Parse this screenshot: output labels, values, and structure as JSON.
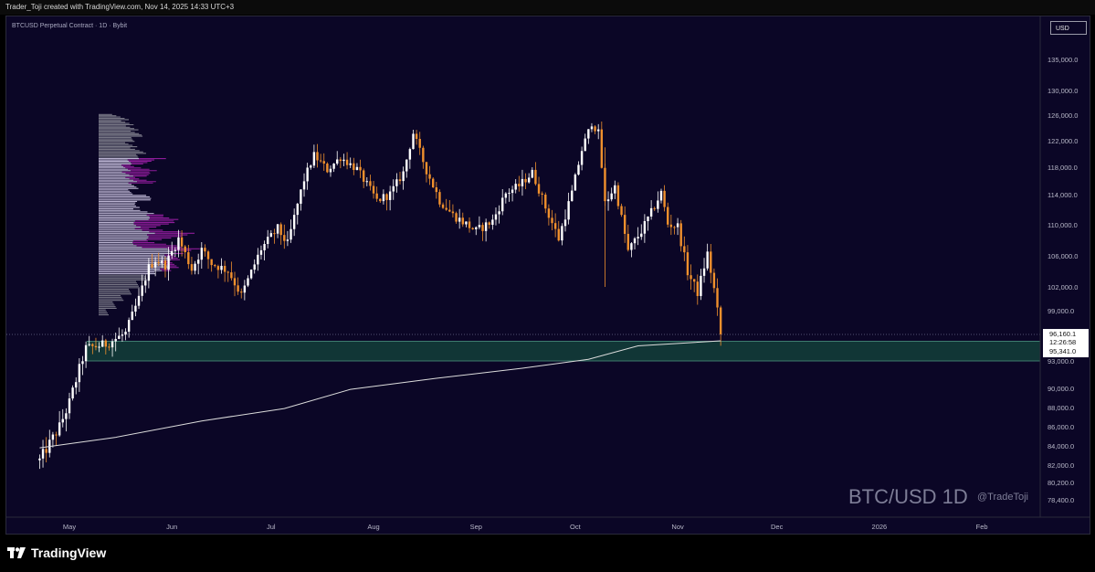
{
  "header": {
    "created_by": "Trader_Toji created with TradingView.com, Nov 14, 2025 14:33 UTC+3"
  },
  "chart_info": {
    "symbol": "BTCUSD Perpetual Contract · 1D · Bybit",
    "currency": "USD",
    "watermark": "BTC/USD 1D",
    "handle": "@TradeToji"
  },
  "footer": {
    "brand": "TradingView"
  },
  "colors": {
    "background": "#0b0626",
    "up_candle": "#ffffff",
    "down_candle": "#f0902d",
    "volume_profile_value_area": "#d8d0ee",
    "volume_profile_outside": "#8a8a96",
    "volume_profile_delta": "#9b1fa6",
    "support_zone": "#13403a",
    "moving_average": "#dcdcdc"
  },
  "chart_data": {
    "type": "candlestick",
    "title": "BTCUSD Perpetual Contract · 1D · Bybit",
    "y_axis_label": "USD",
    "y_ticks": [
      "135,000.0",
      "130,000.0",
      "126,000.0",
      "122,000.0",
      "118,000.0",
      "114,000.0",
      "110,000.0",
      "106,000.0",
      "102,000.0",
      "99,000.0",
      "93,000.0",
      "90,000.0",
      "88,000.0",
      "86,000.0",
      "84,000.0",
      "82,000.0",
      "80,200.0",
      "78,400.0"
    ],
    "x_ticks": [
      "May",
      "Jun",
      "Jul",
      "Aug",
      "Sep",
      "Oct",
      "Nov",
      "Dec",
      "2026",
      "Feb"
    ],
    "price_labels": {
      "last_price": "96,160.1",
      "countdown": "12:26:58",
      "zone_top": "95,341.0"
    },
    "support_zone": [
      93000,
      95341
    ],
    "ohlc_close_path": [
      [
        "2025-04-22",
        82500
      ],
      [
        "2025-04-28",
        86000
      ],
      [
        "2025-05-01",
        88500
      ],
      [
        "2025-05-06",
        94500
      ],
      [
        "2025-05-12",
        95000
      ],
      [
        "2025-05-18",
        96300
      ],
      [
        "2025-05-22",
        100500
      ],
      [
        "2025-05-25",
        104500
      ],
      [
        "2025-05-27",
        105500
      ],
      [
        "2025-05-30",
        104800
      ],
      [
        "2025-06-03",
        108200
      ],
      [
        "2025-06-07",
        104300
      ],
      [
        "2025-06-10",
        106800
      ],
      [
        "2025-06-13",
        105000
      ],
      [
        "2025-06-18",
        104100
      ],
      [
        "2025-06-22",
        100900
      ],
      [
        "2025-06-28",
        106900
      ],
      [
        "2025-07-03",
        109500
      ],
      [
        "2025-07-06",
        107500
      ],
      [
        "2025-07-11",
        116200
      ],
      [
        "2025-07-14",
        119800
      ],
      [
        "2025-07-18",
        117600
      ],
      [
        "2025-07-22",
        119500
      ],
      [
        "2025-07-27",
        117700
      ],
      [
        "2025-08-02",
        113200
      ],
      [
        "2025-08-06",
        114100
      ],
      [
        "2025-08-10",
        117200
      ],
      [
        "2025-08-13",
        123200
      ],
      [
        "2025-08-17",
        117500
      ],
      [
        "2025-08-21",
        113200
      ],
      [
        "2025-08-25",
        111300
      ],
      [
        "2025-09-01",
        109200
      ],
      [
        "2025-09-06",
        110500
      ],
      [
        "2025-09-10",
        114200
      ],
      [
        "2025-09-14",
        115300
      ],
      [
        "2025-09-18",
        117200
      ],
      [
        "2025-09-22",
        112300
      ],
      [
        "2025-09-26",
        108200
      ],
      [
        "2025-09-30",
        114300
      ],
      [
        "2025-10-03",
        120600
      ],
      [
        "2025-10-06",
        124800
      ],
      [
        "2025-10-08",
        123200
      ],
      [
        "2025-10-10",
        112800
      ],
      [
        "2025-10-13",
        115200
      ],
      [
        "2025-10-17",
        106600
      ],
      [
        "2025-10-21",
        109200
      ],
      [
        "2025-10-24",
        111600
      ],
      [
        "2025-10-27",
        114300
      ],
      [
        "2025-10-29",
        110100
      ],
      [
        "2025-11-01",
        109800
      ],
      [
        "2025-11-04",
        103900
      ],
      [
        "2025-11-07",
        101300
      ],
      [
        "2025-11-10",
        106300
      ],
      [
        "2025-11-12",
        101700
      ],
      [
        "2025-11-14",
        96160
      ]
    ],
    "moving_average_points": [
      [
        "2025-04-22",
        83800
      ],
      [
        "2025-05-15",
        84900
      ],
      [
        "2025-06-10",
        86600
      ],
      [
        "2025-07-05",
        87900
      ],
      [
        "2025-07-25",
        89900
      ],
      [
        "2025-08-20",
        91100
      ],
      [
        "2025-09-15",
        92200
      ],
      [
        "2025-10-05",
        93200
      ],
      [
        "2025-10-20",
        94800
      ],
      [
        "2025-11-14",
        95400
      ]
    ]
  }
}
